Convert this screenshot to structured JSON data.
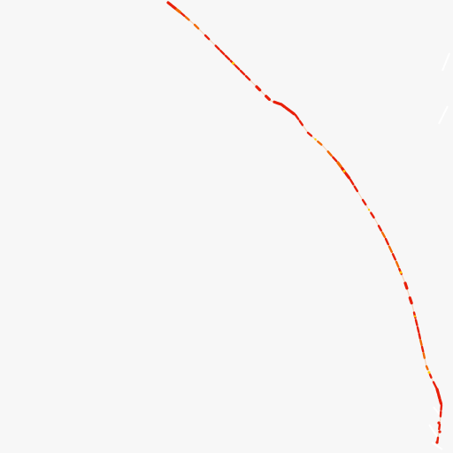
{
  "image": {
    "background_color": "#f7f7f7",
    "curve_colors": {
      "primary": "#e8200a",
      "secondary": "#f26a00",
      "highlight": "#ffd000"
    }
  }
}
